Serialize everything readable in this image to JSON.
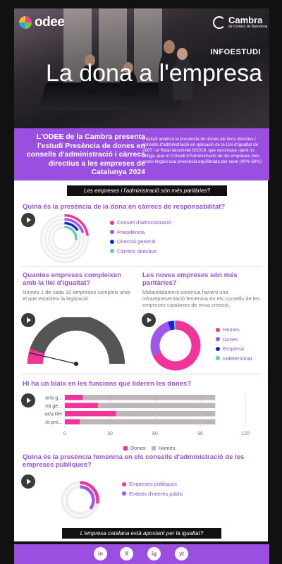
{
  "brand": {
    "odee": "odee",
    "cambra_title": "Cambra",
    "cambra_sub": "de Comerç de Barcelona"
  },
  "hero": {
    "kicker": "INFOESTUDI",
    "title": "La dona a l'empresa"
  },
  "intro": {
    "lead": "L'ODEE de la Cambra presenta l'estudi Presència de dones en consells d'administració i càrrecs directius a les empreses de Catalunya 2024",
    "body": "L'estudi analitza la presència de dones als llocs directius i consells d'administració en aplicació de la Llei d'Igualtat de 2007 i el Reial decret-llei 6/2019, que recomana -però no obliga- que el Consell d'Administració de les empreses més grans tinguin una presència equilibrada per sexe (40%-60%)"
  },
  "pill1": "Les empreses i l'administració són més paritàries?",
  "pill2": "L'empresa catalana està apostant per la igualtat?",
  "section1": {
    "title": "Quina és la presència de la dona en càrrecs de responsabilitat?",
    "legend": [
      {
        "label": "Consell d'administració",
        "color": "#f0349a"
      },
      {
        "label": "Presidència",
        "color": "#a056e8"
      },
      {
        "label": "Direcció general",
        "color": "#1a1ee0"
      },
      {
        "label": "Càrrecs directius",
        "color": "#5cd1a8"
      }
    ]
  },
  "section2": {
    "title": "Quantes empreses compleixen amb la llei d'igualtat?",
    "subtitle": "Només 1 de cada 10 empreses compleix amb el que estableix la legislació.",
    "gauge_value_pct": 10,
    "colors": {
      "fill": "#f0349a",
      "track": "#555555"
    }
  },
  "section3": {
    "title": "Les noves empreses són més paritàries?",
    "subtitle": "Malauradament continua havent una infrarepresentació femenina en els consells de les empreses catalanes de nova creació.",
    "legend": [
      {
        "label": "Homes",
        "color": "#f0349a"
      },
      {
        "label": "Dones",
        "color": "#a056e8"
      },
      {
        "label": "Empresa",
        "color": "#1a1ee0"
      },
      {
        "label": "Indeterminat",
        "color": "#5cd1a8"
      }
    ]
  },
  "section4": {
    "title": "Hi ha un biaix en les funcions que lideren les dones?",
    "x_ticks": [
      "0",
      "30",
      "60",
      "90",
      "120"
    ],
    "legend": [
      {
        "label": "Dones",
        "color": "#f0349a"
      },
      {
        "label": "Homes",
        "color": "#bdb5b7"
      }
    ]
  },
  "chart_data": [
    {
      "type": "pie",
      "title": "Quina és la presència de la dona en càrrecs de responsabilitat?",
      "series": [
        {
          "name": "Consell d'administració",
          "value": 23
        },
        {
          "name": "Presidència",
          "value": 20
        },
        {
          "name": "Direcció general",
          "value": 16
        },
        {
          "name": "Càrrecs directius",
          "value": 27
        }
      ],
      "max": 100
    },
    {
      "type": "pie",
      "title": "Les noves empreses són més paritàries?",
      "series": [
        {
          "name": "Homes",
          "value": 68
        },
        {
          "name": "Dones",
          "value": 27
        },
        {
          "name": "Empresa",
          "value": 4
        },
        {
          "name": "Indeterminat",
          "value": 1
        }
      ]
    },
    {
      "type": "bar",
      "orientation": "horizontal",
      "stacked": true,
      "title": "Hi ha un biaix en les funcions que lideren les dones?",
      "categories": [
        "or/a g...",
        "r/a ge...",
        "or/a RH",
        "/a pro..."
      ],
      "series": [
        {
          "name": "Dones",
          "values": [
            12,
            22,
            34,
            10
          ]
        },
        {
          "name": "Homes",
          "values": [
            88,
            78,
            66,
            90
          ]
        }
      ],
      "xlim": [
        0,
        120
      ],
      "xticks": [
        0,
        30,
        60,
        90,
        120
      ]
    },
    {
      "type": "pie",
      "title": "Quina és la presència femenina en els consells d'administració de les empreses públiques?",
      "series": [
        {
          "name": "Empreses públiques",
          "value": 28
        },
        {
          "name": "Entitats d'interès públic",
          "value": 36
        }
      ],
      "max": 100
    }
  ],
  "section5": {
    "title": "Quina és la presència femenina en els consells d'administració de les empreses públiques?",
    "legend": [
      {
        "label": "Empreses públiques",
        "color": "#f0349a"
      },
      {
        "label": "Entitats d'interès públic",
        "color": "#a056e8"
      }
    ]
  },
  "social": [
    "in",
    "X",
    "ig",
    "yt"
  ]
}
